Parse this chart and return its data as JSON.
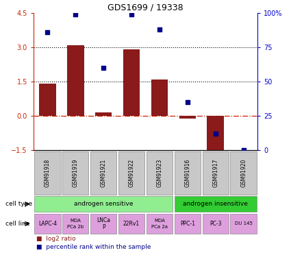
{
  "title": "GDS1699 / 19338",
  "samples": [
    "GSM91918",
    "GSM91919",
    "GSM91921",
    "GSM91922",
    "GSM91923",
    "GSM91916",
    "GSM91917",
    "GSM91920"
  ],
  "log2_ratio": [
    1.4,
    3.1,
    0.15,
    2.9,
    1.6,
    -0.12,
    -1.55,
    0.0
  ],
  "percentile_rank": [
    86,
    99,
    60,
    99,
    88,
    35,
    12,
    0
  ],
  "ylim_left": [
    -1.5,
    4.5
  ],
  "ylim_right": [
    0,
    100
  ],
  "yticks_left": [
    -1.5,
    0,
    1.5,
    3,
    4.5
  ],
  "yticks_right": [
    0,
    25,
    50,
    75,
    100
  ],
  "hlines": [
    1.5,
    3.0
  ],
  "bar_color": "#8B1A1A",
  "dot_color": "#00008B",
  "zero_line_color": "#CC2200",
  "hline_color": "#000000",
  "cell_type_groups": [
    {
      "label": "androgen sensitive",
      "start": 0,
      "end": 5,
      "color": "#90EE90"
    },
    {
      "label": "androgen insensitive",
      "start": 5,
      "end": 8,
      "color": "#33CC33"
    }
  ],
  "cell_lines": [
    {
      "label": "LAPC-4",
      "start": 0,
      "end": 1,
      "multiline": false,
      "fontsize": 5.5
    },
    {
      "label": "MDA\nPCa 2b",
      "start": 1,
      "end": 2,
      "multiline": true,
      "fontsize": 5.0
    },
    {
      "label": "LNCa\nP",
      "start": 2,
      "end": 3,
      "multiline": true,
      "fontsize": 5.5
    },
    {
      "label": "22Rv1",
      "start": 3,
      "end": 4,
      "multiline": false,
      "fontsize": 5.5
    },
    {
      "label": "MDA\nPCa 2a",
      "start": 4,
      "end": 5,
      "multiline": true,
      "fontsize": 5.0
    },
    {
      "label": "PPC-1",
      "start": 5,
      "end": 6,
      "multiline": false,
      "fontsize": 5.5
    },
    {
      "label": "PC-3",
      "start": 6,
      "end": 7,
      "multiline": false,
      "fontsize": 5.5
    },
    {
      "label": "DU 145",
      "start": 7,
      "end": 8,
      "multiline": false,
      "fontsize": 5.0
    }
  ],
  "cell_line_color": "#DDA0DD",
  "sample_bg_color": "#C8C8C8",
  "bg_color": "#FFFFFF",
  "left_label_color": "#CC2200",
  "right_label_color": "#0000CC"
}
